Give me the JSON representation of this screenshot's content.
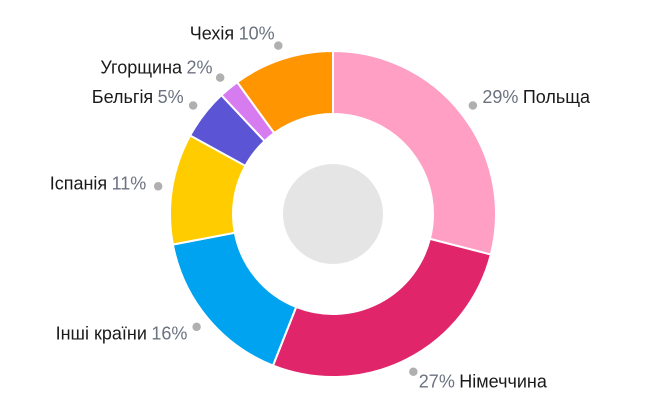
{
  "chart_data": {
    "type": "pie",
    "variant": "donut",
    "title": "",
    "series": [
      {
        "name": "Польща",
        "value": 29,
        "label": "29%",
        "color": "#FF9FC3"
      },
      {
        "name": "Німеччина",
        "value": 27,
        "label": "27%",
        "color": "#E0256A"
      },
      {
        "name": "Інші країни",
        "value": 16,
        "label": "16%",
        "color": "#00A3F0"
      },
      {
        "name": "Іспанія",
        "value": 11,
        "label": "11%",
        "color": "#FFCC00"
      },
      {
        "name": "Бельгія",
        "value": 5,
        "label": "5%",
        "color": "#5B55D6"
      },
      {
        "name": "Угорщина",
        "value": 2,
        "label": "2%",
        "color": "#D77CF0"
      },
      {
        "name": "Чехія",
        "value": 10,
        "label": "10%",
        "color": "#FF9500"
      }
    ],
    "center_fill": "#E5E5E5",
    "connector_color": "#B0B0B0",
    "legend": "none",
    "start": "top",
    "direction": "clockwise"
  }
}
